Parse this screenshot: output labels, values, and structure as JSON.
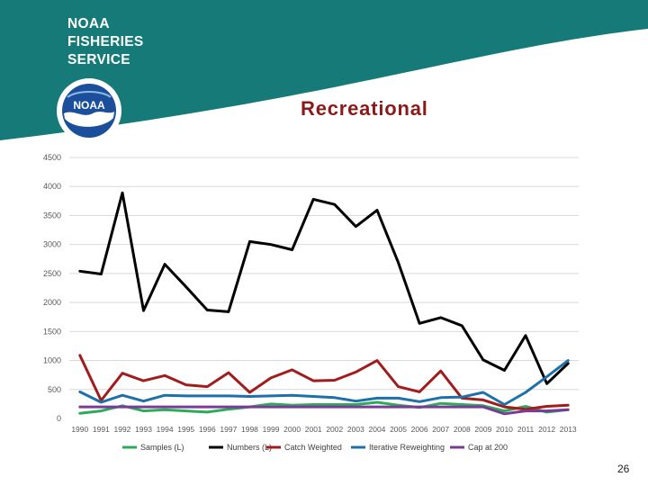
{
  "header": {
    "org_line1": "NOAA",
    "org_line2": "FISHERIES",
    "org_line3": "SERVICE",
    "logo_text": "NOAA",
    "accent_color": "#167a78"
  },
  "slide": {
    "page_number": "26"
  },
  "chart_data": {
    "type": "line",
    "title": "Recreational",
    "xlabel": "",
    "ylabel": "",
    "ylim": [
      0,
      4500
    ],
    "yticks": [
      "0",
      "500",
      "1000",
      "1500",
      "2000",
      "2500",
      "3000",
      "3500",
      "4000",
      "4500"
    ],
    "grid": true,
    "legend_position": "bottom",
    "categories": [
      "1990",
      "1991",
      "1992",
      "1993",
      "1994",
      "1995",
      "1996",
      "1997",
      "1998",
      "1999",
      "2000",
      "2001",
      "2002",
      "2003",
      "2004",
      "2005",
      "2006",
      "2007",
      "2008",
      "2009",
      "2010",
      "2011",
      "2012",
      "2013"
    ],
    "series": [
      {
        "name": "Samples (L)",
        "color": "#2eab5a",
        "values": [
          90,
          130,
          220,
          130,
          150,
          130,
          110,
          160,
          200,
          250,
          230,
          240,
          240,
          240,
          280,
          230,
          190,
          260,
          240,
          220,
          130,
          210,
          110,
          150
        ]
      },
      {
        "name": "Numbers (L)",
        "color": "#000000",
        "values": [
          2540,
          2490,
          3890,
          1860,
          2660,
          2270,
          1870,
          1840,
          3050,
          3000,
          2910,
          3780,
          3690,
          3310,
          3590,
          2690,
          1640,
          1740,
          1600,
          1010,
          830,
          1430,
          600,
          950
        ]
      },
      {
        "name": "Catch Weighted",
        "color": "#a11c1c",
        "values": [
          1090,
          310,
          780,
          650,
          740,
          580,
          550,
          790,
          450,
          700,
          840,
          650,
          660,
          800,
          1000,
          550,
          460,
          820,
          350,
          320,
          200,
          160,
          210,
          230
        ]
      },
      {
        "name": "Iterative Reweighting",
        "color": "#1f6fa8",
        "values": [
          460,
          280,
          400,
          300,
          400,
          390,
          390,
          390,
          380,
          390,
          400,
          380,
          360,
          300,
          350,
          350,
          290,
          360,
          370,
          450,
          240,
          450,
          720,
          1000
        ]
      },
      {
        "name": "Cap at 200",
        "color": "#7a3b96",
        "values": [
          200,
          200,
          200,
          200,
          200,
          200,
          200,
          200,
          200,
          200,
          200,
          200,
          200,
          200,
          200,
          200,
          200,
          200,
          200,
          200,
          80,
          130,
          130,
          150
        ]
      }
    ]
  }
}
